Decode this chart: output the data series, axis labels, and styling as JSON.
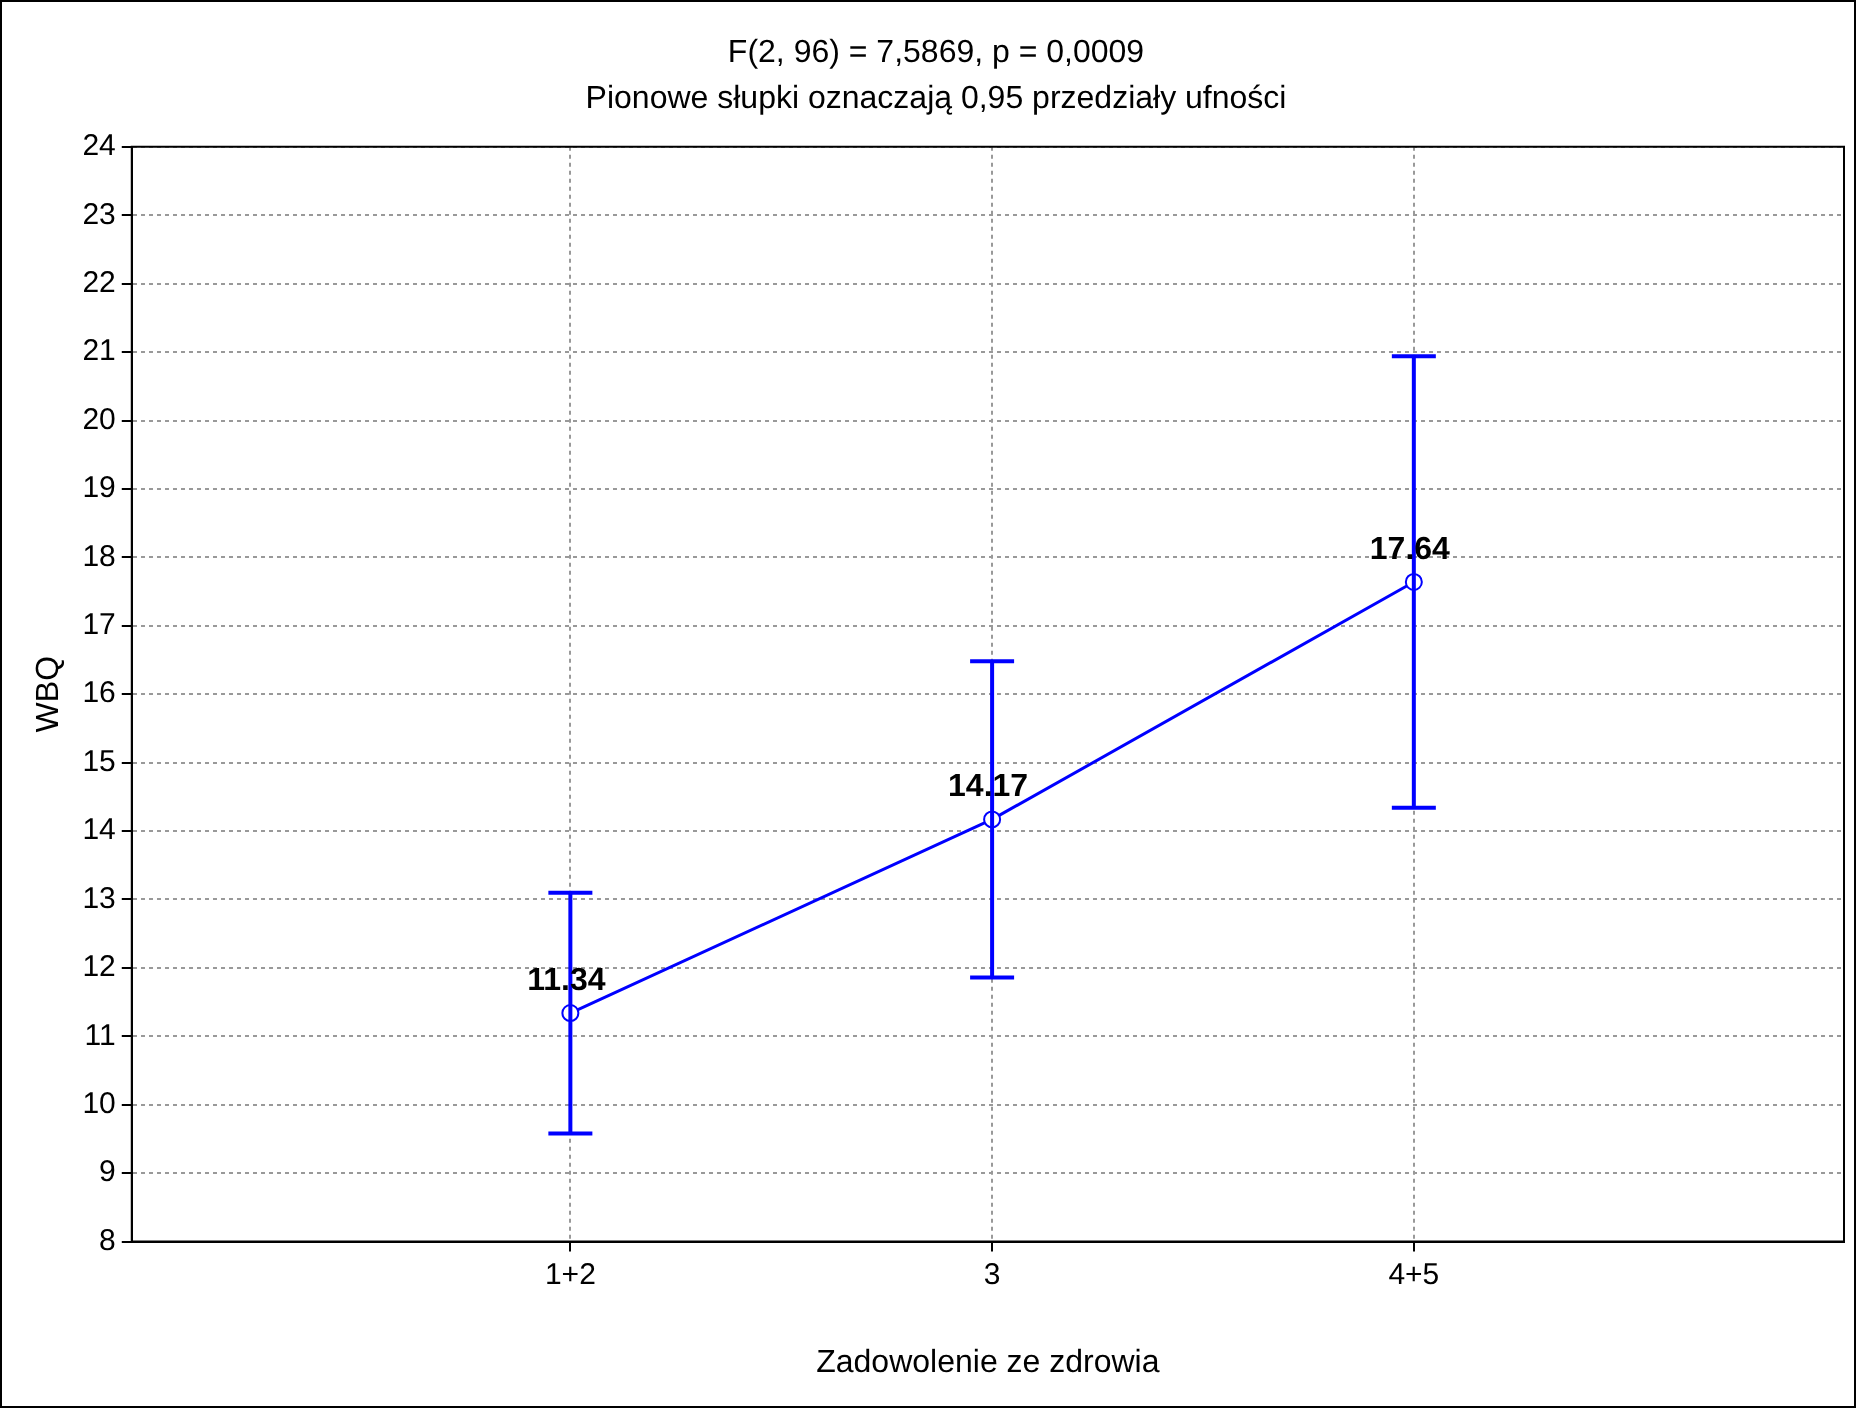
{
  "chart_data": {
    "type": "line",
    "title": "F(2, 96) = 7,5869, p = 0,0009",
    "subtitle": "Pionowe słupki oznaczają 0,95 przedziały ufności",
    "xlabel": "Zadowolenie ze zdrowia",
    "ylabel": "WBQ",
    "categories": [
      "1+2",
      "3",
      "4+5"
    ],
    "series": [
      {
        "color": "#0000ff",
        "values": [
          11.34,
          14.17,
          17.64
        ],
        "errors": [
          1.76,
          2.31,
          3.3
        ]
      }
    ],
    "ylim": [
      8,
      24
    ],
    "yticks": [
      8,
      9,
      10,
      11,
      12,
      13,
      14,
      15,
      16,
      17,
      18,
      19,
      20,
      21,
      22,
      23,
      24
    ],
    "grid": true,
    "legend": false,
    "marker": "circle",
    "line_style": "solid",
    "data_labels": true
  }
}
